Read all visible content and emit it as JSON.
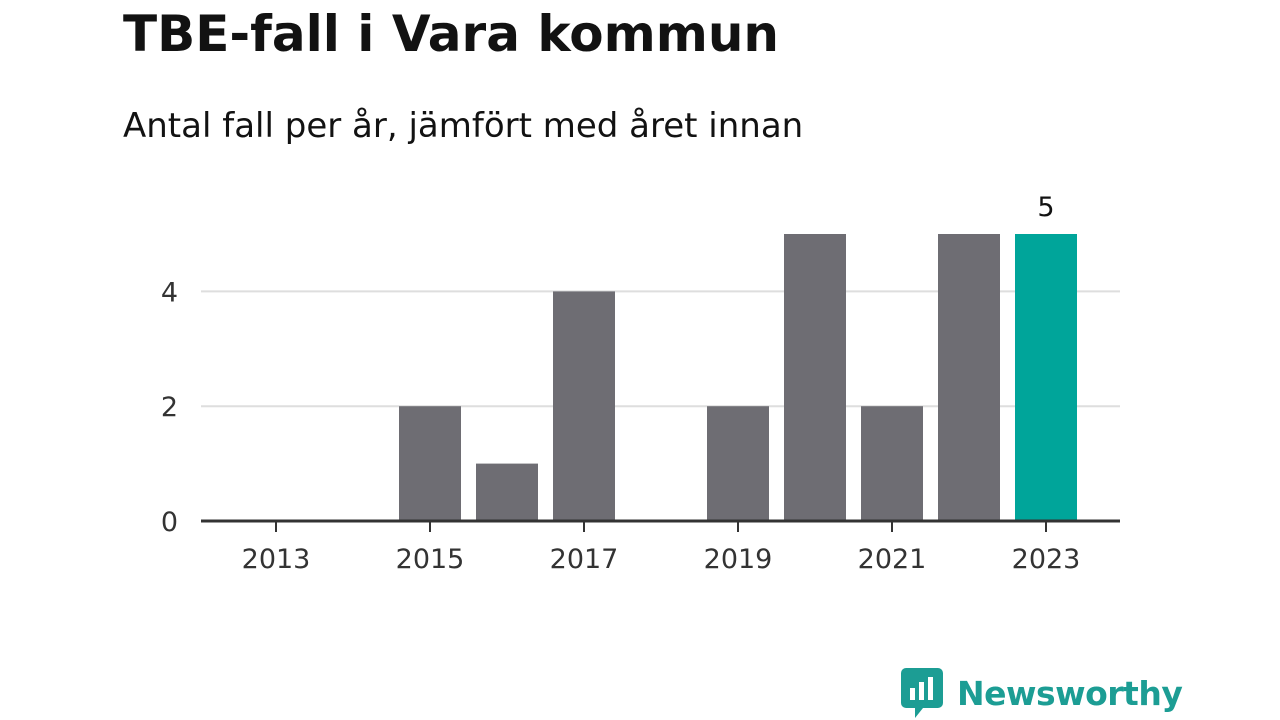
{
  "title": "TBE-fall i Vara kommun",
  "subtitle": "Antal fall per år, jämfört med året innan",
  "chart_data": {
    "type": "bar",
    "categories": [
      "2013",
      "2014",
      "2015",
      "2016",
      "2017",
      "2018",
      "2019",
      "2020",
      "2021",
      "2022",
      "2023"
    ],
    "values": [
      0,
      0,
      2,
      1,
      4,
      0,
      2,
      5,
      2,
      5,
      5
    ],
    "x_tick_labels": [
      "2013",
      "2015",
      "2017",
      "2019",
      "2021",
      "2023"
    ],
    "y_ticks": [
      0,
      2,
      4
    ],
    "ylim": [
      0,
      5
    ],
    "highlight_category": "2023",
    "highlight_value_label": "5",
    "bar_color": "#6e6d73",
    "highlight_color": "#00a59a",
    "grid": true
  },
  "logo": {
    "text": "Newsworthy",
    "color": "#1c9d94"
  }
}
